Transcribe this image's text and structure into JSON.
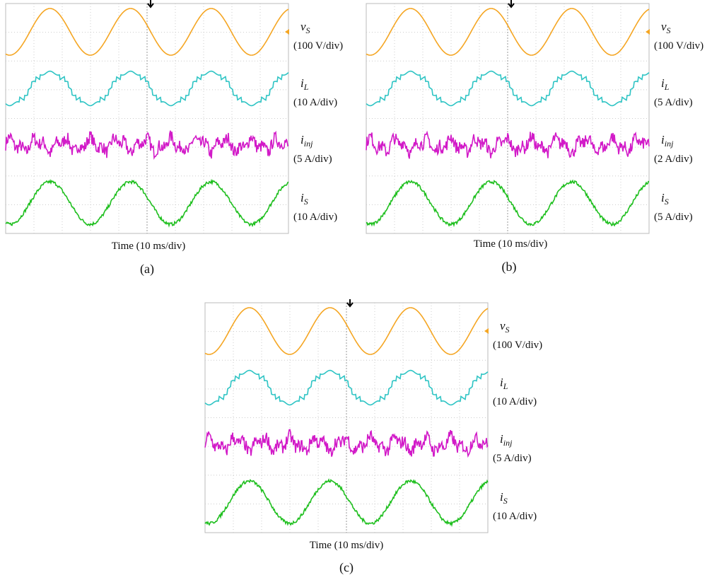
{
  "panels": [
    {
      "traces": [
        {
          "symbol": "v",
          "subscript": "S",
          "scale": "(100 V/div)"
        },
        {
          "symbol": "i",
          "subscript": "L",
          "scale": "(10 A/div)"
        },
        {
          "symbol": "i",
          "subscript": "inj",
          "scale": "(5 A/div)"
        },
        {
          "symbol": "i",
          "subscript": "S",
          "scale": "(10 A/div)"
        }
      ],
      "time_label": "Time (10 ms/div)",
      "caption": "(a)"
    },
    {
      "traces": [
        {
          "symbol": "v",
          "subscript": "S",
          "scale": "(100 V/div)"
        },
        {
          "symbol": "i",
          "subscript": "L",
          "scale": "(5 A/div)"
        },
        {
          "symbol": "i",
          "subscript": "inj",
          "scale": "(2 A/div)"
        },
        {
          "symbol": "i",
          "subscript": "S",
          "scale": "(5 A/div)"
        }
      ],
      "time_label": "Time (10 ms/div)",
      "caption": "(b)"
    },
    {
      "traces": [
        {
          "symbol": "v",
          "subscript": "S",
          "scale": "(100 V/div)"
        },
        {
          "symbol": "i",
          "subscript": "L",
          "scale": "(10 A/div)"
        },
        {
          "symbol": "i",
          "subscript": "inj",
          "scale": "(5 A/div)"
        },
        {
          "symbol": "i",
          "subscript": "S",
          "scale": "(10 A/div)"
        }
      ],
      "time_label": "Time (10 ms/div)",
      "caption": "(c)"
    }
  ]
}
